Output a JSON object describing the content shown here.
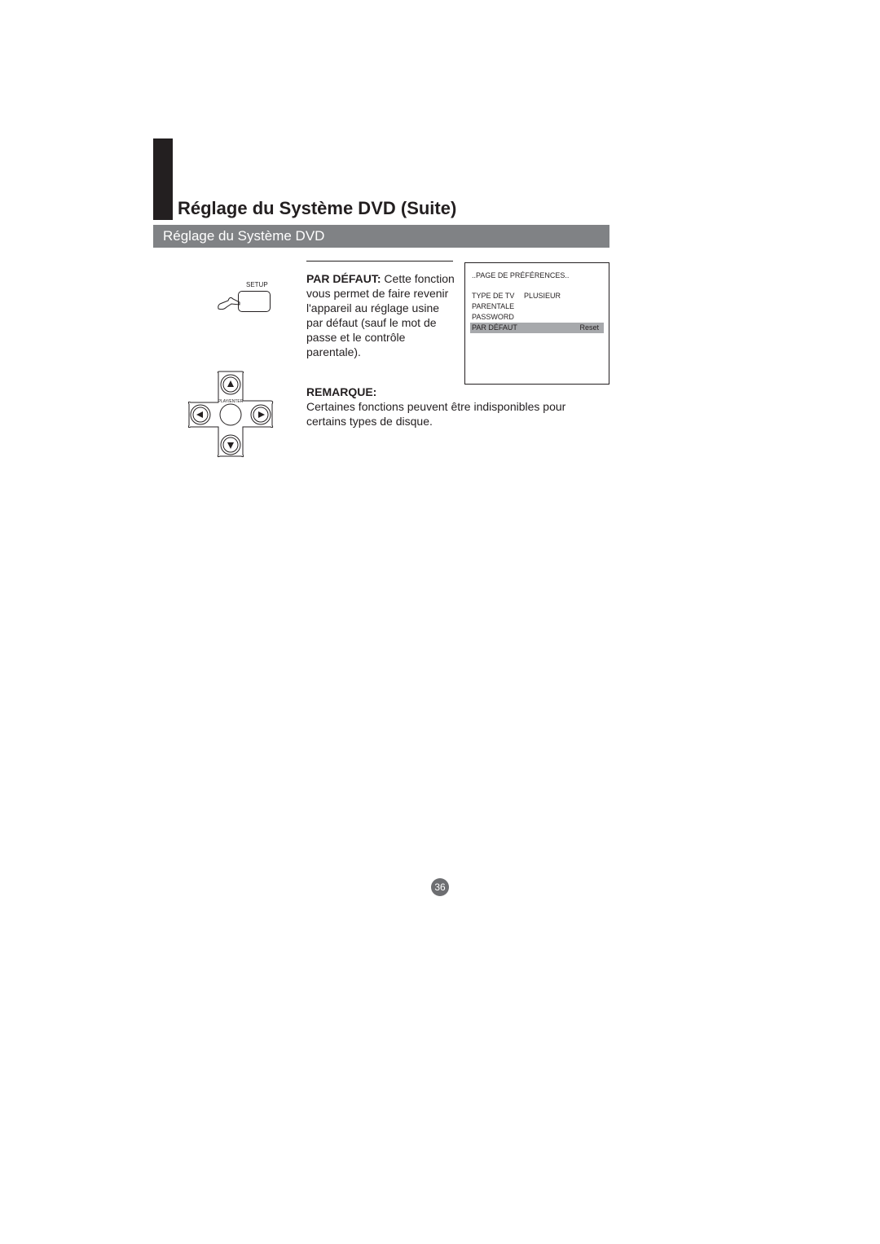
{
  "section_title": "Réglage du Système DVD (Suite)",
  "subheader": "Réglage du Système DVD",
  "setup": {
    "label": "SETUP"
  },
  "dpad": {
    "center_label": "PLAY/ENTER"
  },
  "para1": {
    "bold_lead": "PAR DÉFAUT:",
    "text": " Cette fonction vous permet de faire revenir l'appareil au réglage usine par défaut (sauf le mot de passe et le contrôle parentale)."
  },
  "remarque": {
    "title": "REMARQUE:",
    "text": "Certaines fonctions peuvent être indisponibles pour certains types de disque."
  },
  "screen": {
    "title": "..PAGE DE PRÉFÉRENCES..",
    "rows": [
      {
        "label": "TYPE DE TV",
        "value": "PLUSIEUR",
        "highlight": false
      },
      {
        "label": "PARENTALE",
        "value": "",
        "highlight": false
      },
      {
        "label": "PASSWORD",
        "value": "",
        "highlight": false
      },
      {
        "label": "PAR DÉFAUT",
        "value": "Reset",
        "highlight": true
      }
    ]
  },
  "page_number": "36",
  "colors": {
    "black": "#231f20",
    "grey_header": "#808285",
    "grey_hl": "#a7a9ac",
    "grey_pagenum": "#6d6e71",
    "white": "#ffffff"
  }
}
